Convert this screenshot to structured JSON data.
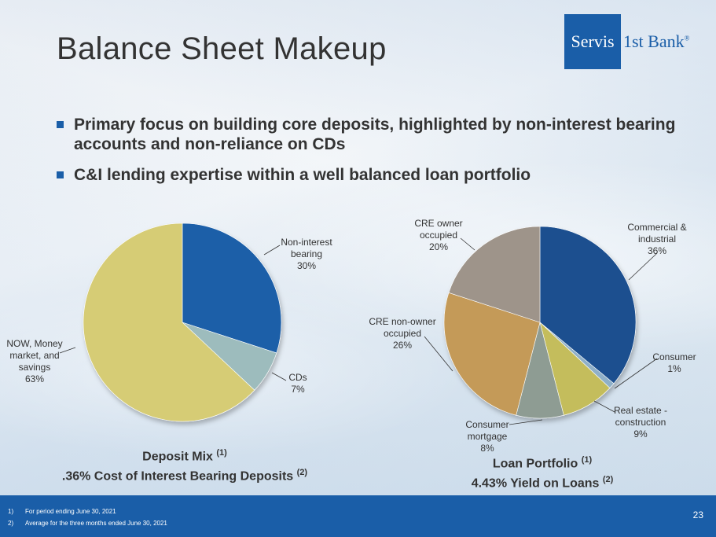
{
  "slide": {
    "title": "Balance Sheet Makeup",
    "page_number": "23",
    "bullets": [
      "Primary focus on building core deposits, highlighted by non-interest bearing accounts and non-reliance on CDs",
      "C&I lending expertise within a well balanced loan portfolio"
    ]
  },
  "logo": {
    "box_text": "Servis",
    "rest_text": "1st Bank",
    "mark": "®",
    "color": "#1a5ea8"
  },
  "footnotes": [
    {
      "num": "1)",
      "text": "For period ending June 30, 2021"
    },
    {
      "num": "2)",
      "text": "Average for the three months ended June 30, 2021"
    }
  ],
  "captions": {
    "deposit": {
      "line1": "Deposit Mix",
      "line1_sup": "(1)",
      "line2": ".36% Cost of Interest Bearing Deposits",
      "line2_sup": "(2)"
    },
    "loan": {
      "line1": "Loan Portfolio",
      "line1_sup": "(1)",
      "line2": "4.43% Yield on Loans",
      "line2_sup": "(2)"
    }
  },
  "chart_data": [
    {
      "type": "pie",
      "title": "",
      "slices": [
        {
          "label": [
            "Non-interest",
            "bearing"
          ],
          "pct": "30%",
          "value": 30,
          "color": "#1a5ea8"
        },
        {
          "label": [
            "CDs"
          ],
          "pct": "7%",
          "value": 7,
          "color": "#9dbcbd"
        },
        {
          "label": [
            "NOW, Money",
            "market, and",
            "savings"
          ],
          "pct": "63%",
          "value": 63,
          "color": "#d6cc74"
        }
      ]
    },
    {
      "type": "pie",
      "title": "",
      "slices": [
        {
          "label": [
            "Commercial &",
            "industrial"
          ],
          "pct": "36%",
          "value": 36,
          "color": "#1c4f8f"
        },
        {
          "label": [
            "Consumer"
          ],
          "pct": "1%",
          "value": 1,
          "color": "#8fb0c8"
        },
        {
          "label": [
            "Real estate -",
            "construction"
          ],
          "pct": "9%",
          "value": 9,
          "color": "#c4bd5c"
        },
        {
          "label": [
            "Consumer",
            "mortgage"
          ],
          "pct": "8%",
          "value": 8,
          "color": "#8e9c93"
        },
        {
          "label": [
            "CRE non-owner",
            "occupied"
          ],
          "pct": "26%",
          "value": 26,
          "color": "#c49a58"
        },
        {
          "label": [
            "CRE owner",
            "occupied"
          ],
          "pct": "20%",
          "value": 20,
          "color": "#9e948a"
        }
      ]
    }
  ]
}
